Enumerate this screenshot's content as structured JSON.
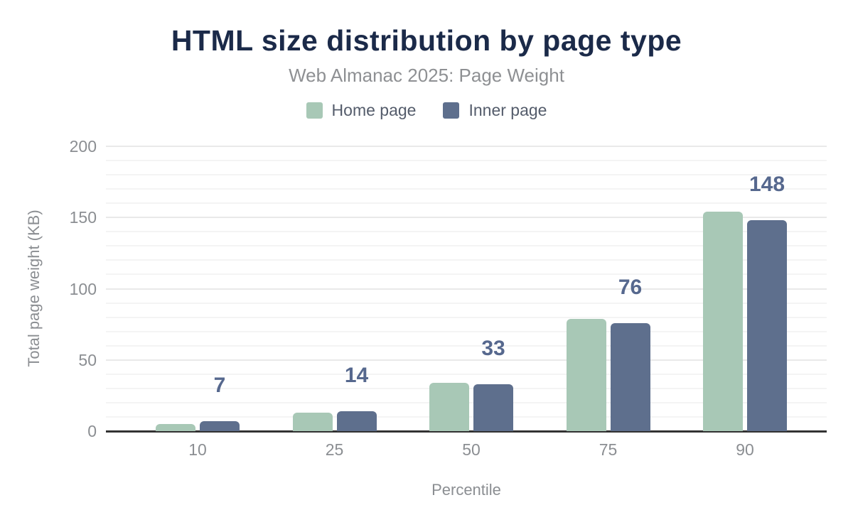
{
  "page": {
    "background": "#ffffff"
  },
  "header": {
    "title": "HTML size distribution by page type",
    "subtitle": "Web Almanac 2025: Page Weight"
  },
  "legend": {
    "items": [
      {
        "label": "Home page",
        "color": "#a8c8b6"
      },
      {
        "label": "Inner page",
        "color": "#5e6f8d"
      }
    ]
  },
  "chart_data": {
    "type": "bar",
    "title": "HTML size distribution by page type",
    "subtitle": "Web Almanac 2025: Page Weight",
    "categories": [
      "10",
      "25",
      "50",
      "75",
      "90"
    ],
    "series": [
      {
        "name": "Home page",
        "color": "#a8c8b6",
        "values": [
          5,
          13,
          34,
          79,
          154
        ]
      },
      {
        "name": "Inner page",
        "color": "#5e6f8d",
        "values": [
          7,
          14,
          33,
          76,
          148
        ]
      }
    ],
    "bar_labels": {
      "series": "Inner page",
      "values": [
        "7",
        "14",
        "33",
        "76",
        "148"
      ],
      "color": "#56688e"
    },
    "xlabel": "Percentile",
    "ylabel": "Total page weight (KB)",
    "ylim": [
      0,
      200
    ],
    "yticks": [
      0,
      50,
      100,
      150,
      200
    ],
    "minor_grid_step": 10,
    "major_grid_step": 50,
    "grid": true,
    "legend_position": "top",
    "colors": {
      "title": "#1b2a49",
      "subtitle": "#8e9093",
      "axis_text": "#8b8e92",
      "major_grid": "#e9e9e9",
      "minor_grid": "#f4f4f4",
      "baseline": "#323232"
    }
  }
}
